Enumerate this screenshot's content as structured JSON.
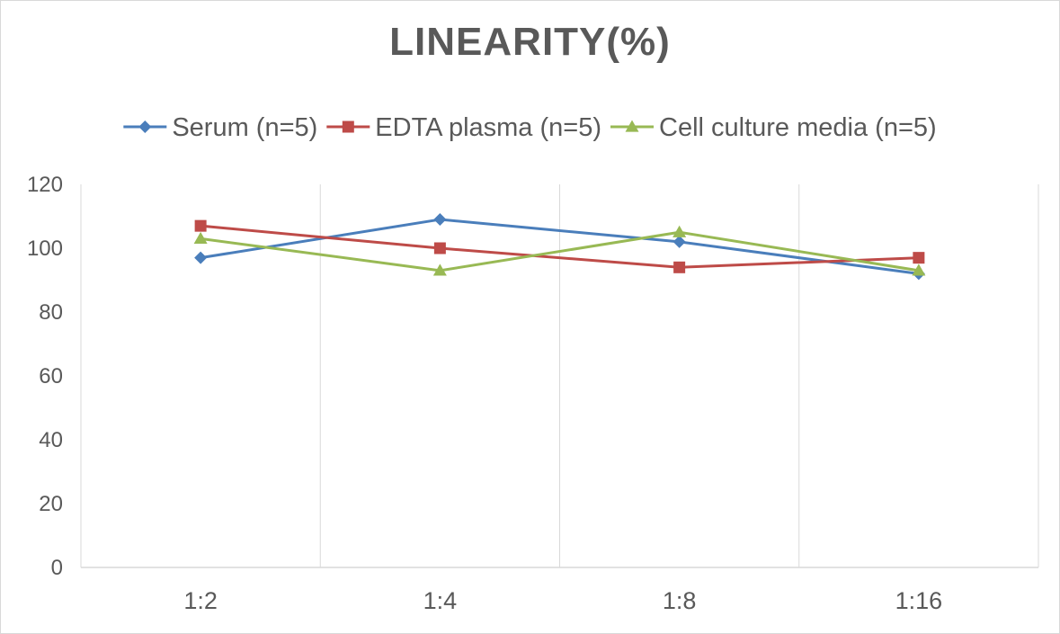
{
  "chart_data": {
    "type": "line",
    "title": "LINEARITY(%)",
    "xlabel": "",
    "ylabel": "",
    "categories": [
      "1:2",
      "1:4",
      "1:8",
      "1:16"
    ],
    "ylim": [
      0,
      120
    ],
    "yticks": [
      0,
      20,
      40,
      60,
      80,
      100,
      120
    ],
    "grid": "vertical",
    "legend_position": "top",
    "series": [
      {
        "name": "Serum (n=5)",
        "values": [
          97,
          109,
          102,
          92
        ],
        "color": "#4a7ebb",
        "marker": "diamond"
      },
      {
        "name": "EDTA plasma (n=5)",
        "values": [
          107,
          100,
          94,
          97
        ],
        "color": "#be4b48",
        "marker": "square"
      },
      {
        "name": "Cell culture media (n=5)",
        "values": [
          103,
          93,
          105,
          93
        ],
        "color": "#98b954",
        "marker": "triangle"
      }
    ]
  }
}
